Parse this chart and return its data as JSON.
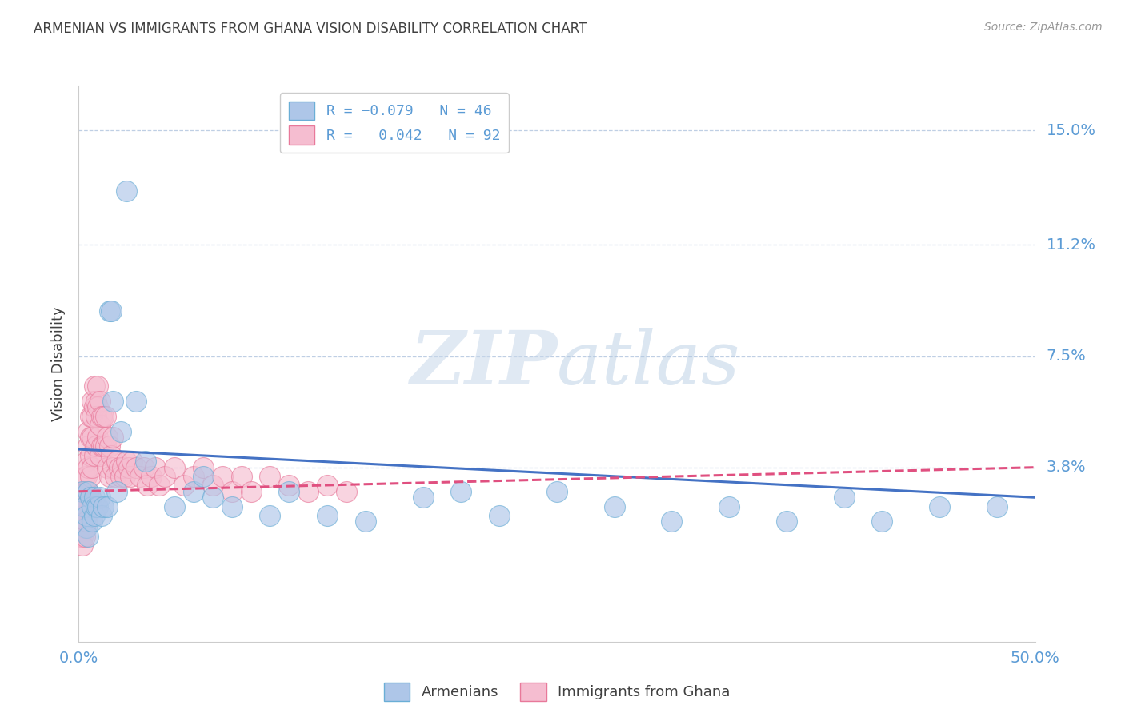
{
  "title": "ARMENIAN VS IMMIGRANTS FROM GHANA VISION DISABILITY CORRELATION CHART",
  "source": "Source: ZipAtlas.com",
  "xlabel_start": "0.0%",
  "xlabel_end": "50.0%",
  "ylabel": "Vision Disability",
  "ytick_labels": [
    "15.0%",
    "11.2%",
    "7.5%",
    "3.8%"
  ],
  "ytick_values": [
    0.15,
    0.112,
    0.075,
    0.038
  ],
  "xlim": [
    0.0,
    0.5
  ],
  "ylim": [
    -0.02,
    0.165
  ],
  "armenians_R": -0.079,
  "armenians_N": 46,
  "ghana_R": 0.042,
  "ghana_N": 92,
  "watermark_zip": "ZIP",
  "watermark_atlas": "atlas",
  "legend_armenians": "Armenians",
  "legend_ghana": "Immigrants from Ghana",
  "blue_color": "#aec6e8",
  "blue_edge_color": "#6aaed6",
  "pink_color": "#f5bdd0",
  "pink_edge_color": "#e8799a",
  "blue_line_color": "#4472C4",
  "pink_line_color": "#E05080",
  "title_color": "#404040",
  "axis_label_color": "#5b9bd5",
  "background_color": "#ffffff",
  "grid_color": "#b0c4de",
  "armenians_x": [
    0.002,
    0.003,
    0.004,
    0.004,
    0.005,
    0.005,
    0.006,
    0.007,
    0.007,
    0.008,
    0.008,
    0.009,
    0.01,
    0.011,
    0.012,
    0.013,
    0.015,
    0.016,
    0.017,
    0.018,
    0.02,
    0.022,
    0.025,
    0.03,
    0.035,
    0.05,
    0.06,
    0.065,
    0.07,
    0.08,
    0.1,
    0.11,
    0.13,
    0.15,
    0.18,
    0.2,
    0.22,
    0.25,
    0.28,
    0.31,
    0.34,
    0.37,
    0.4,
    0.42,
    0.45,
    0.48
  ],
  "armenians_y": [
    0.03,
    0.025,
    0.018,
    0.022,
    0.03,
    0.015,
    0.028,
    0.025,
    0.02,
    0.028,
    0.022,
    0.025,
    0.025,
    0.028,
    0.022,
    0.025,
    0.025,
    0.09,
    0.09,
    0.06,
    0.03,
    0.05,
    0.13,
    0.06,
    0.04,
    0.025,
    0.03,
    0.035,
    0.028,
    0.025,
    0.022,
    0.03,
    0.022,
    0.02,
    0.028,
    0.03,
    0.022,
    0.03,
    0.025,
    0.02,
    0.025,
    0.02,
    0.028,
    0.02,
    0.025,
    0.025
  ],
  "ghana_x": [
    0.001,
    0.001,
    0.001,
    0.001,
    0.001,
    0.002,
    0.002,
    0.002,
    0.002,
    0.002,
    0.002,
    0.003,
    0.003,
    0.003,
    0.003,
    0.003,
    0.003,
    0.004,
    0.004,
    0.004,
    0.004,
    0.004,
    0.005,
    0.005,
    0.005,
    0.005,
    0.006,
    0.006,
    0.006,
    0.006,
    0.006,
    0.007,
    0.007,
    0.007,
    0.007,
    0.008,
    0.008,
    0.008,
    0.009,
    0.009,
    0.009,
    0.01,
    0.01,
    0.01,
    0.011,
    0.011,
    0.011,
    0.012,
    0.012,
    0.013,
    0.013,
    0.014,
    0.014,
    0.015,
    0.015,
    0.016,
    0.016,
    0.017,
    0.018,
    0.018,
    0.019,
    0.02,
    0.021,
    0.022,
    0.023,
    0.024,
    0.025,
    0.026,
    0.027,
    0.028,
    0.03,
    0.032,
    0.034,
    0.036,
    0.038,
    0.04,
    0.042,
    0.045,
    0.05,
    0.055,
    0.06,
    0.065,
    0.07,
    0.075,
    0.08,
    0.085,
    0.09,
    0.1,
    0.11,
    0.12,
    0.13,
    0.14
  ],
  "ghana_y": [
    0.025,
    0.02,
    0.028,
    0.018,
    0.015,
    0.03,
    0.025,
    0.022,
    0.018,
    0.015,
    0.012,
    0.035,
    0.03,
    0.025,
    0.022,
    0.018,
    0.015,
    0.04,
    0.035,
    0.03,
    0.025,
    0.02,
    0.05,
    0.045,
    0.038,
    0.03,
    0.055,
    0.048,
    0.042,
    0.035,
    0.028,
    0.06,
    0.055,
    0.048,
    0.038,
    0.065,
    0.058,
    0.042,
    0.06,
    0.055,
    0.045,
    0.065,
    0.058,
    0.048,
    0.06,
    0.052,
    0.042,
    0.055,
    0.045,
    0.055,
    0.045,
    0.055,
    0.045,
    0.048,
    0.038,
    0.045,
    0.035,
    0.042,
    0.048,
    0.038,
    0.035,
    0.04,
    0.038,
    0.035,
    0.038,
    0.035,
    0.04,
    0.038,
    0.035,
    0.04,
    0.038,
    0.035,
    0.038,
    0.032,
    0.035,
    0.038,
    0.032,
    0.035,
    0.038,
    0.032,
    0.035,
    0.038,
    0.032,
    0.035,
    0.03,
    0.035,
    0.03,
    0.035,
    0.032,
    0.03,
    0.032,
    0.03
  ],
  "blue_trend_x0": 0.0,
  "blue_trend_y0": 0.044,
  "blue_trend_x1": 0.5,
  "blue_trend_y1": 0.028,
  "pink_trend_x0": 0.0,
  "pink_trend_y0": 0.03,
  "pink_trend_x1": 0.5,
  "pink_trend_y1": 0.038
}
